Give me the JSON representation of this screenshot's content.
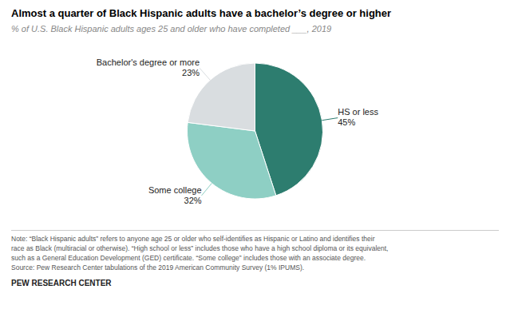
{
  "chart_data": {
    "type": "pie",
    "title": "Almost a quarter of Black Hispanic adults have a bachelor’s degree or higher",
    "subtitle": "% of U.S. Black Hispanic adults ages 25 and older who have completed ___, 2019",
    "categories": [
      "HS or less",
      "Some college",
      "Bachelor's degree or more"
    ],
    "values": [
      45,
      32,
      23
    ],
    "value_labels": [
      "45%",
      "32%",
      "23%"
    ],
    "colors": [
      "#2d7d6f",
      "#8ecfc4",
      "#d9dde0"
    ],
    "data_labels": true,
    "note": "Note: “Black Hispanic adults” refers to anyone age 25 or older who self-identifies as Hispanic or Latino and identifies their\nrace as Black (multiracial or otherwise). “High school or less” includes those who have a high school diploma or its equivalent,\nsuch as a General Education Development (GED) certificate. “Some college” includes those with an associate degree.\nSource: Pew Research Center tabulations of the 2019 American Community Survey (1% IPUMS).",
    "source": "PEW RESEARCH CENTER"
  }
}
